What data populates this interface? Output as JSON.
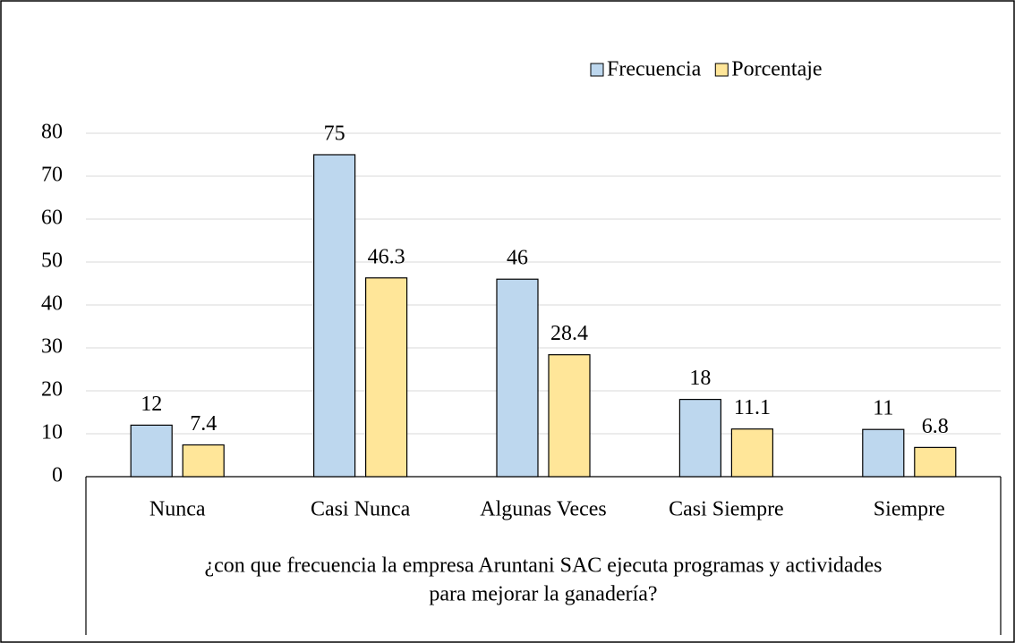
{
  "chart_data": {
    "type": "bar",
    "categories": [
      "Nunca",
      "Casi Nunca",
      "Algunas Veces",
      "Casi Siempre",
      "Siempre"
    ],
    "series": [
      {
        "name": "Frecuencia",
        "color": "#bdd7ee",
        "values": [
          12,
          75,
          46,
          18,
          11
        ]
      },
      {
        "name": "Porcentaje",
        "color": "#ffe699",
        "values": [
          7.4,
          46.3,
          28.4,
          11.1,
          6.8
        ]
      }
    ],
    "xlabel": [
      "¿con que frecuencia la empresa Aruntani SAC ejecuta programas y actividades",
      "para mejorar la ganadería?"
    ],
    "ylim": [
      0,
      80
    ],
    "yticks": [
      0,
      10,
      20,
      30,
      40,
      50,
      60,
      70,
      80
    ],
    "grid": true,
    "legend": "top-right"
  }
}
